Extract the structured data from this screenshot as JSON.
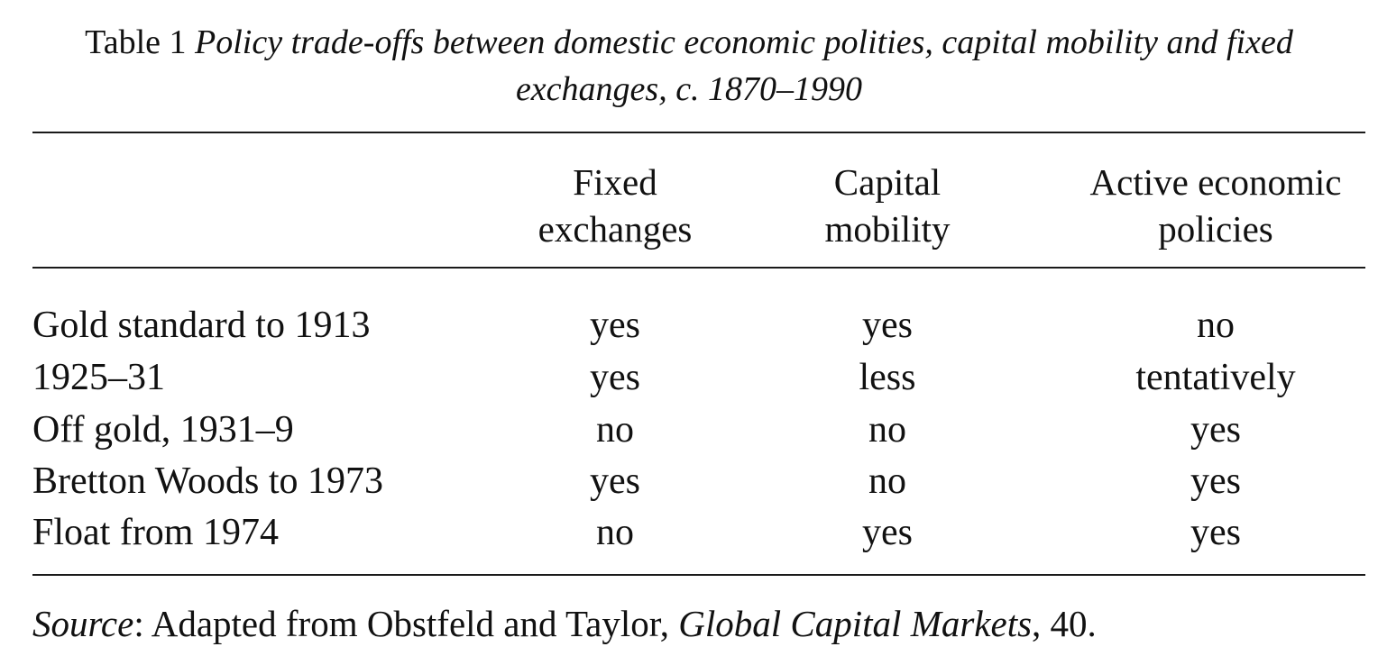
{
  "caption": {
    "label": "Table 1",
    "title_part1": "Policy trade-offs between domestic economic polities, capital mobility and fixed",
    "title_part2": "exchanges, c. 1870–1990"
  },
  "table": {
    "headers": [
      [
        "Fixed",
        "exchanges"
      ],
      [
        "Capital",
        "mobility"
      ],
      [
        "Active economic",
        "policies"
      ]
    ],
    "rows": [
      {
        "label": "Gold standard to 1913",
        "cells": [
          "yes",
          "yes",
          "no"
        ]
      },
      {
        "label": "1925–31",
        "cells": [
          "yes",
          "less",
          "tentatively"
        ]
      },
      {
        "label": "Off gold, 1931–9",
        "cells": [
          "no",
          "no",
          "yes"
        ]
      },
      {
        "label": "Bretton Woods to 1973",
        "cells": [
          "yes",
          "no",
          "yes"
        ]
      },
      {
        "label": "Float from 1974",
        "cells": [
          "no",
          "yes",
          "yes"
        ]
      }
    ]
  },
  "source": {
    "prefix": "Source",
    "colon": ":",
    "text1": " Adapted from Obstfeld and Taylor, ",
    "book": "Global Capital Markets",
    "text2": ", 40."
  }
}
